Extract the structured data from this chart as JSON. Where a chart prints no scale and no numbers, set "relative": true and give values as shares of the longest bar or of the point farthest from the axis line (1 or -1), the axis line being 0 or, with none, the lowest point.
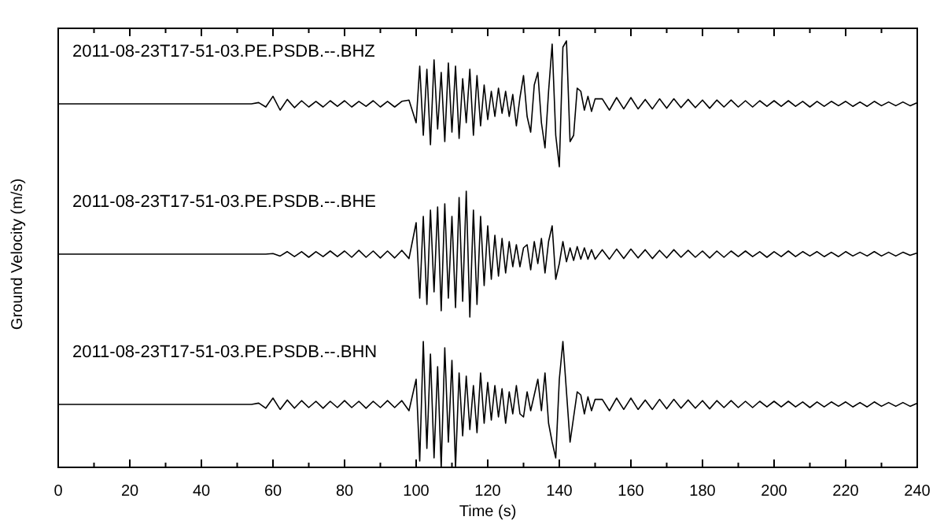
{
  "chart_data": [
    {
      "type": "line",
      "relative": true,
      "tick_labels": false,
      "xlim": [
        0,
        240
      ],
      "marker": "none",
      "line_style": "solid",
      "x": [
        0,
        50,
        54,
        56,
        58,
        60,
        62,
        64,
        66,
        68,
        70,
        72,
        74,
        76,
        78,
        80,
        82,
        84,
        86,
        88,
        90,
        92,
        94,
        96,
        98,
        100,
        101,
        102,
        103,
        104,
        105,
        106,
        107,
        108,
        109,
        110,
        111,
        112,
        113,
        114,
        115,
        116,
        117,
        118,
        119,
        120,
        121,
        122,
        123,
        124,
        125,
        126,
        127,
        128,
        129,
        130,
        131,
        132,
        133,
        134,
        135,
        136,
        137,
        138,
        139,
        140,
        141,
        142,
        143,
        144,
        145,
        146,
        147,
        148,
        149,
        150,
        152,
        154,
        156,
        158,
        160,
        162,
        164,
        166,
        168,
        170,
        172,
        174,
        176,
        178,
        180,
        182,
        184,
        186,
        188,
        190,
        192,
        194,
        196,
        198,
        200,
        202,
        204,
        206,
        208,
        210,
        212,
        214,
        216,
        218,
        220,
        222,
        224,
        226,
        228,
        230,
        232,
        234,
        236,
        238,
        240
      ],
      "series": [
        {
          "name": "2011-08-23T17-51-03.PE.PSDB.--.BHZ",
          "color": "#000000",
          "values": [
            0.5,
            0.5,
            0.5,
            0.51,
            0.475,
            0.56,
            0.45,
            0.535,
            0.47,
            0.525,
            0.475,
            0.52,
            0.475,
            0.525,
            0.48,
            0.525,
            0.475,
            0.52,
            0.48,
            0.525,
            0.475,
            0.52,
            0.475,
            0.52,
            0.53,
            0.35,
            0.8,
            0.25,
            0.775,
            0.175,
            0.85,
            0.3,
            0.75,
            0.2,
            0.825,
            0.275,
            0.8,
            0.225,
            0.7,
            0.35,
            0.775,
            0.25,
            0.725,
            0.325,
            0.65,
            0.375,
            0.6,
            0.4,
            0.625,
            0.425,
            0.6,
            0.4,
            0.575,
            0.325,
            0.55,
            0.725,
            0.4,
            0.275,
            0.65,
            0.75,
            0.35,
            0.15,
            0.6,
            0.975,
            0.25,
            0,
            0.95,
            1,
            0.2,
            0.25,
            0.625,
            0.6,
            0.45,
            0.56,
            0.44,
            0.54,
            0.54,
            0.45,
            0.55,
            0.46,
            0.55,
            0.46,
            0.535,
            0.46,
            0.54,
            0.465,
            0.54,
            0.47,
            0.535,
            0.47,
            0.53,
            0.465,
            0.53,
            0.475,
            0.53,
            0.475,
            0.525,
            0.475,
            0.525,
            0.48,
            0.525,
            0.48,
            0.525,
            0.48,
            0.52,
            0.475,
            0.52,
            0.48,
            0.52,
            0.485,
            0.52,
            0.48,
            0.515,
            0.48,
            0.52,
            0.485,
            0.515,
            0.485,
            0.515,
            0.485,
            0.51
          ]
        }
      ]
    },
    {
      "type": "line",
      "relative": true,
      "tick_labels": false,
      "xlim": [
        0,
        240
      ],
      "marker": "none",
      "line_style": "solid",
      "ylabel": "Ground Velocity (m/s)",
      "x": [
        0,
        50,
        54,
        56,
        58,
        60,
        62,
        64,
        66,
        68,
        70,
        72,
        74,
        76,
        78,
        80,
        82,
        84,
        86,
        88,
        90,
        92,
        94,
        96,
        98,
        100,
        101,
        102,
        103,
        104,
        105,
        106,
        107,
        108,
        109,
        110,
        111,
        112,
        113,
        114,
        115,
        116,
        117,
        118,
        119,
        120,
        121,
        122,
        123,
        124,
        125,
        126,
        127,
        128,
        129,
        130,
        131,
        132,
        133,
        134,
        135,
        136,
        137,
        138,
        139,
        140,
        141,
        142,
        143,
        144,
        145,
        146,
        147,
        148,
        149,
        150,
        152,
        154,
        156,
        158,
        160,
        162,
        164,
        166,
        168,
        170,
        172,
        174,
        176,
        178,
        180,
        182,
        184,
        186,
        188,
        190,
        192,
        194,
        196,
        198,
        200,
        202,
        204,
        206,
        208,
        210,
        212,
        214,
        216,
        218,
        220,
        222,
        224,
        226,
        228,
        230,
        232,
        234,
        236,
        238,
        240
      ],
      "series": [
        {
          "name": "2011-08-23T17-51-03.PE.PSDB.--.BHE",
          "color": "#000000",
          "values": [
            0.5,
            0.5,
            0.5,
            0.5,
            0.5,
            0.505,
            0.485,
            0.52,
            0.48,
            0.52,
            0.475,
            0.52,
            0.48,
            0.525,
            0.48,
            0.525,
            0.475,
            0.53,
            0.475,
            0.525,
            0.47,
            0.525,
            0.47,
            0.53,
            0.465,
            0.75,
            0.15,
            0.8,
            0.1,
            0.85,
            0.2,
            0.875,
            0.05,
            0.9,
            0.15,
            0.8,
            0.075,
            0.95,
            0.125,
            1,
            0,
            0.85,
            0.1,
            0.8,
            0.25,
            0.725,
            0.3,
            0.65,
            0.325,
            0.625,
            0.35,
            0.6,
            0.4,
            0.575,
            0.4,
            0.55,
            0.575,
            0.375,
            0.6,
            0.425,
            0.625,
            0.35,
            0.6,
            0.725,
            0.3,
            0.425,
            0.6,
            0.44,
            0.55,
            0.45,
            0.56,
            0.46,
            0.55,
            0.46,
            0.535,
            0.46,
            0.535,
            0.46,
            0.54,
            0.465,
            0.54,
            0.47,
            0.535,
            0.465,
            0.53,
            0.47,
            0.535,
            0.475,
            0.53,
            0.475,
            0.525,
            0.47,
            0.525,
            0.475,
            0.525,
            0.48,
            0.525,
            0.48,
            0.52,
            0.475,
            0.52,
            0.48,
            0.525,
            0.48,
            0.52,
            0.485,
            0.52,
            0.48,
            0.515,
            0.48,
            0.52,
            0.485,
            0.515,
            0.485,
            0.52,
            0.485,
            0.515,
            0.485,
            0.515,
            0.49,
            0.51
          ]
        }
      ]
    },
    {
      "type": "line",
      "relative": true,
      "tick_labels": "x",
      "xlim": [
        0,
        240
      ],
      "marker": "none",
      "line_style": "solid",
      "xlabel": "Time (s)",
      "xticks": [
        0,
        {
          "value": 10,
          "label": null
        },
        20,
        {
          "value": 30,
          "label": null
        },
        40,
        {
          "value": 50,
          "label": null
        },
        60,
        {
          "value": 70,
          "label": null
        },
        80,
        {
          "value": 90,
          "label": null
        },
        100,
        {
          "value": 110,
          "label": null
        },
        120,
        {
          "value": 130,
          "label": null
        },
        140,
        {
          "value": 150,
          "label": null
        },
        160,
        {
          "value": 170,
          "label": null
        },
        180,
        {
          "value": 190,
          "label": null
        },
        200,
        {
          "value": 210,
          "label": null
        },
        220,
        {
          "value": 230,
          "label": null
        },
        240
      ],
      "x": [
        0,
        50,
        54,
        56,
        58,
        60,
        62,
        64,
        66,
        68,
        70,
        72,
        74,
        76,
        78,
        80,
        82,
        84,
        86,
        88,
        90,
        92,
        94,
        96,
        98,
        100,
        101,
        102,
        103,
        104,
        105,
        106,
        107,
        108,
        109,
        110,
        111,
        112,
        113,
        114,
        115,
        116,
        117,
        118,
        119,
        120,
        121,
        122,
        123,
        124,
        125,
        126,
        127,
        128,
        129,
        130,
        131,
        132,
        133,
        134,
        135,
        136,
        137,
        138,
        139,
        140,
        141,
        142,
        143,
        144,
        145,
        146,
        147,
        148,
        149,
        150,
        152,
        154,
        156,
        158,
        160,
        162,
        164,
        166,
        168,
        170,
        172,
        174,
        176,
        178,
        180,
        182,
        184,
        186,
        188,
        190,
        192,
        194,
        196,
        198,
        200,
        202,
        204,
        206,
        208,
        210,
        212,
        214,
        216,
        218,
        220,
        222,
        224,
        226,
        228,
        230,
        232,
        234,
        236,
        238,
        240
      ],
      "series": [
        {
          "name": "2011-08-23T17-51-03.PE.PSDB.--.BHN",
          "color": "#000000",
          "values": [
            0.5,
            0.5,
            0.5,
            0.51,
            0.47,
            0.55,
            0.46,
            0.535,
            0.47,
            0.53,
            0.475,
            0.525,
            0.47,
            0.525,
            0.475,
            0.53,
            0.475,
            0.525,
            0.47,
            0.525,
            0.475,
            0.53,
            0.475,
            0.53,
            0.45,
            0.7,
            0.05,
            1,
            0.15,
            0.9,
            0.075,
            0.8,
            0,
            0.95,
            0.2,
            0.85,
            0,
            0.75,
            0.25,
            0.725,
            0.3,
            0.65,
            0.275,
            0.75,
            0.35,
            0.675,
            0.375,
            0.65,
            0.4,
            0.625,
            0.35,
            0.6,
            0.425,
            0.65,
            0.425,
            0.4,
            0.6,
            0.45,
            0.575,
            0.7,
            0.45,
            0.75,
            0.35,
            0.2,
            0.075,
            0.7,
            1,
            0.6,
            0.2,
            0.4,
            0.6,
            0.575,
            0.425,
            0.56,
            0.45,
            0.54,
            0.54,
            0.45,
            0.55,
            0.46,
            0.55,
            0.46,
            0.535,
            0.46,
            0.54,
            0.465,
            0.54,
            0.47,
            0.535,
            0.47,
            0.53,
            0.465,
            0.53,
            0.475,
            0.53,
            0.475,
            0.525,
            0.475,
            0.525,
            0.48,
            0.525,
            0.48,
            0.525,
            0.48,
            0.52,
            0.475,
            0.52,
            0.48,
            0.52,
            0.485,
            0.52,
            0.48,
            0.515,
            0.48,
            0.52,
            0.485,
            0.515,
            0.485,
            0.515,
            0.485,
            0.51
          ]
        }
      ]
    }
  ]
}
